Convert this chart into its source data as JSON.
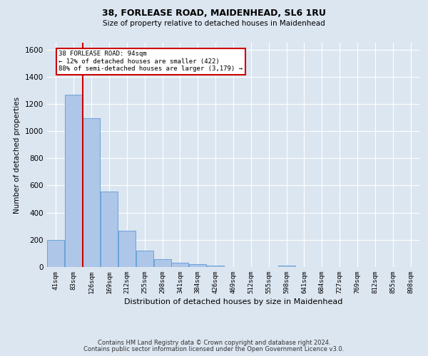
{
  "title": "38, FORLEASE ROAD, MAIDENHEAD, SL6 1RU",
  "subtitle": "Size of property relative to detached houses in Maidenhead",
  "xlabel": "Distribution of detached houses by size in Maidenhead",
  "ylabel": "Number of detached properties",
  "categories": [
    "41sqm",
    "83sqm",
    "126sqm",
    "169sqm",
    "212sqm",
    "255sqm",
    "298sqm",
    "341sqm",
    "384sqm",
    "426sqm",
    "469sqm",
    "512sqm",
    "555sqm",
    "598sqm",
    "641sqm",
    "684sqm",
    "727sqm",
    "769sqm",
    "812sqm",
    "855sqm",
    "898sqm"
  ],
  "values": [
    197,
    1270,
    1095,
    555,
    265,
    120,
    57,
    33,
    22,
    13,
    0,
    0,
    0,
    13,
    0,
    0,
    0,
    0,
    0,
    0,
    0
  ],
  "bar_color": "#aec6e8",
  "bar_edge_color": "#5b9bd5",
  "property_bin_index": 1,
  "annotation_line1": "38 FORLEASE ROAD: 94sqm",
  "annotation_line2": "← 12% of detached houses are smaller (422)",
  "annotation_line3": "88% of semi-detached houses are larger (3,179) →",
  "annotation_box_color": "#ffffff",
  "annotation_box_edge_color": "#cc0000",
  "ylim": [
    0,
    1650
  ],
  "yticks": [
    0,
    200,
    400,
    600,
    800,
    1000,
    1200,
    1400,
    1600
  ],
  "bg_color": "#dce6f1",
  "fig_bg_color": "#dce6f1",
  "grid_color": "#ffffff",
  "footer_line1": "Contains HM Land Registry data © Crown copyright and database right 2024.",
  "footer_line2": "Contains public sector information licensed under the Open Government Licence v3.0."
}
